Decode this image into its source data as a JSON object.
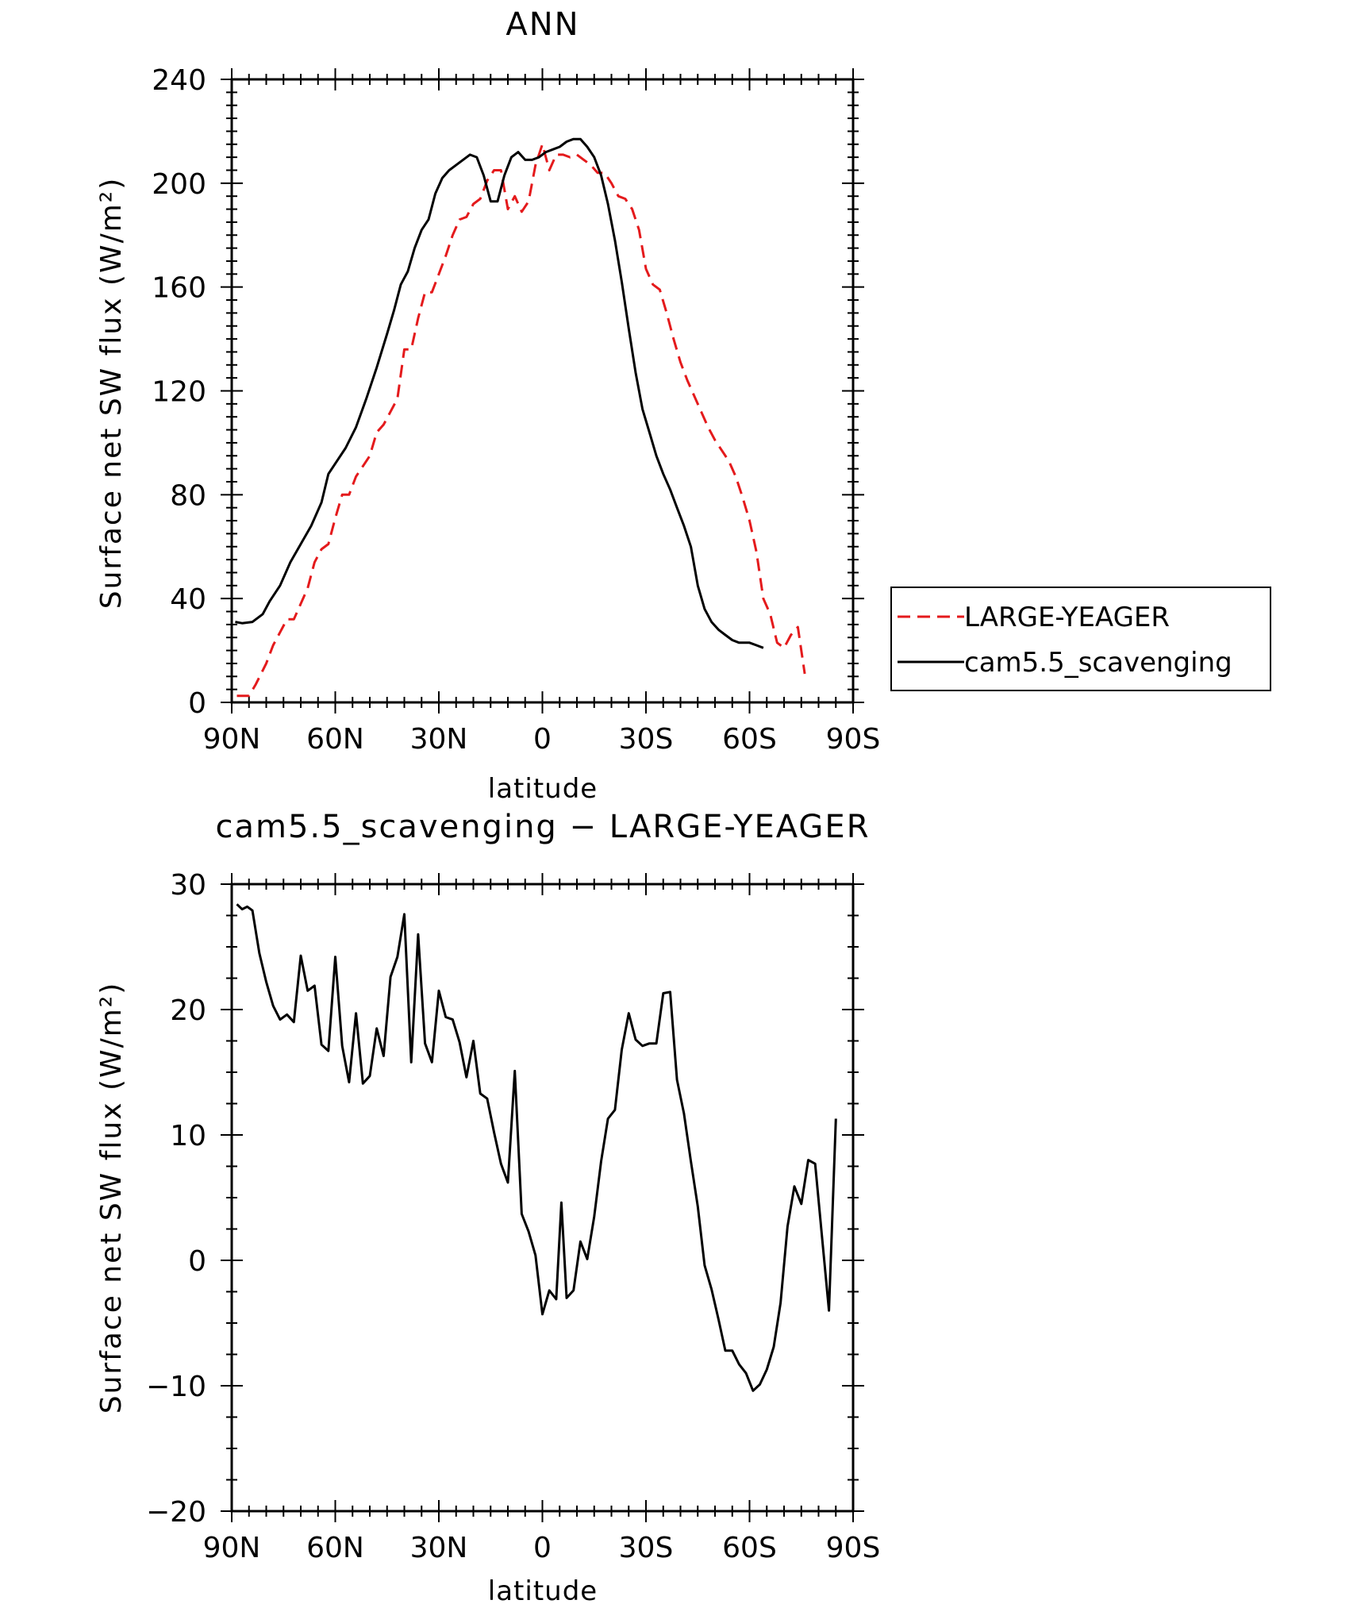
{
  "chart_data": [
    {
      "type": "line",
      "title": "ANN",
      "xlabel": "latitude",
      "ylabel": "Surface net SW flux (W/m²)",
      "xlim": [
        -90,
        90
      ],
      "ylim": [
        0,
        240
      ],
      "x_ticks": [
        "90N",
        "60N",
        "30N",
        "0",
        "30S",
        "60S",
        "90S"
      ],
      "y_ticks": [
        "0",
        "40",
        "80",
        "120",
        "160",
        "200",
        "240"
      ],
      "legend_position": "right",
      "series": [
        {
          "name": "LARGE-YEAGER",
          "color": "#e41a1c",
          "style": "dashed",
          "points": [
            [
              -88.5,
              2.5
            ],
            [
              -85,
              2.5
            ],
            [
              -83,
              7
            ],
            [
              -80,
              15
            ],
            [
              -78,
              22
            ],
            [
              -76,
              27
            ],
            [
              -74,
              32
            ],
            [
              -72,
              32
            ],
            [
              -70,
              38
            ],
            [
              -68,
              44
            ],
            [
              -66,
              54
            ],
            [
              -64,
              59
            ],
            [
              -62,
              61
            ],
            [
              -60,
              71
            ],
            [
              -58,
              80
            ],
            [
              -56,
              80
            ],
            [
              -54,
              87
            ],
            [
              -52,
              91
            ],
            [
              -50,
              95
            ],
            [
              -48,
              104
            ],
            [
              -46,
              107
            ],
            [
              -44,
              112
            ],
            [
              -42,
              117
            ],
            [
              -40,
              136
            ],
            [
              -38,
              136
            ],
            [
              -36,
              148
            ],
            [
              -34,
              158
            ],
            [
              -32,
              158
            ],
            [
              -30,
              165
            ],
            [
              -28,
              172
            ],
            [
              -26,
              180
            ],
            [
              -24,
              186
            ],
            [
              -22,
              187
            ],
            [
              -20,
              192
            ],
            [
              -18,
              194
            ],
            [
              -16,
              201
            ],
            [
              -14,
              205
            ],
            [
              -12,
              205
            ],
            [
              -10,
              190
            ],
            [
              -8,
              195
            ],
            [
              -6,
              189
            ],
            [
              -4,
              193
            ],
            [
              -2,
              207
            ],
            [
              0,
              215
            ],
            [
              2,
              205
            ],
            [
              4,
              211
            ],
            [
              6,
              211
            ],
            [
              8,
              210
            ],
            [
              10,
              211
            ],
            [
              12,
              209
            ],
            [
              14,
              207
            ],
            [
              16,
              204
            ],
            [
              18,
              204
            ],
            [
              20,
              200
            ],
            [
              22,
              195
            ],
            [
              24,
              194
            ],
            [
              26,
              190
            ],
            [
              28,
              182
            ],
            [
              30,
              167
            ],
            [
              32,
              161
            ],
            [
              34,
              159
            ],
            [
              36,
              150
            ],
            [
              38,
              140
            ],
            [
              40,
              131
            ],
            [
              42,
              124
            ],
            [
              44,
              118
            ],
            [
              46,
              112
            ],
            [
              48,
              106
            ],
            [
              50,
              101
            ],
            [
              52,
              97
            ],
            [
              54,
              93
            ],
            [
              56,
              87
            ],
            [
              58,
              79
            ],
            [
              60,
              70
            ],
            [
              62,
              58
            ],
            [
              64,
              40
            ],
            [
              66,
              34
            ],
            [
              68,
              23
            ],
            [
              70,
              21
            ],
            [
              72,
              26
            ],
            [
              74,
              29
            ],
            [
              76,
              11
            ]
          ]
        },
        {
          "name": "cam5.5_scavenging",
          "color": "#000000",
          "style": "solid",
          "points": [
            [
              -89,
              31
            ],
            [
              -87,
              30.5
            ],
            [
              -84,
              31
            ],
            [
              -81,
              34
            ],
            [
              -79,
              39
            ],
            [
              -76,
              45
            ],
            [
              -73,
              54
            ],
            [
              -70,
              61
            ],
            [
              -67,
              68
            ],
            [
              -64,
              77
            ],
            [
              -62,
              88
            ],
            [
              -60,
              92
            ],
            [
              -57,
              98
            ],
            [
              -54,
              106
            ],
            [
              -51,
              117
            ],
            [
              -48,
              129
            ],
            [
              -45,
              142
            ],
            [
              -43,
              151
            ],
            [
              -41,
              161
            ],
            [
              -39,
              166
            ],
            [
              -37,
              175
            ],
            [
              -35,
              182
            ],
            [
              -33,
              186
            ],
            [
              -31,
              196
            ],
            [
              -29,
              202
            ],
            [
              -27,
              205
            ],
            [
              -25,
              207
            ],
            [
              -23,
              209
            ],
            [
              -21,
              211
            ],
            [
              -19,
              210
            ],
            [
              -17,
              203
            ],
            [
              -15,
              193
            ],
            [
              -13,
              193
            ],
            [
              -11,
              203
            ],
            [
              -9,
              210
            ],
            [
              -7,
              212
            ],
            [
              -5,
              209
            ],
            [
              -3,
              209
            ],
            [
              -1,
              210
            ],
            [
              1,
              212
            ],
            [
              3,
              213
            ],
            [
              5,
              214
            ],
            [
              7,
              216
            ],
            [
              9,
              217
            ],
            [
              11,
              217
            ],
            [
              13,
              214
            ],
            [
              15,
              210
            ],
            [
              17,
              203
            ],
            [
              19,
              192
            ],
            [
              21,
              178
            ],
            [
              23,
              162
            ],
            [
              25,
              144
            ],
            [
              27,
              127
            ],
            [
              29,
              113
            ],
            [
              31,
              104
            ],
            [
              33,
              95
            ],
            [
              35,
              88
            ],
            [
              37,
              82
            ],
            [
              39,
              75
            ],
            [
              41,
              68
            ],
            [
              43,
              60
            ],
            [
              45,
              45
            ],
            [
              47,
              36
            ],
            [
              49,
              31
            ],
            [
              51,
              28
            ],
            [
              53,
              26
            ],
            [
              55,
              24
            ],
            [
              57,
              23
            ],
            [
              60,
              23
            ],
            [
              62,
              22
            ],
            [
              64,
              21
            ]
          ]
        }
      ]
    },
    {
      "type": "line",
      "title": "cam5.5_scavenging − LARGE-YEAGER",
      "xlabel": "latitude",
      "ylabel": "Surface net SW flux (W/m²)",
      "xlim": [
        -90,
        90
      ],
      "ylim": [
        -20,
        30
      ],
      "x_ticks": [
        "90N",
        "60N",
        "30N",
        "0",
        "30S",
        "60S",
        "90S"
      ],
      "y_ticks": [
        "−20",
        "−10",
        "0",
        "10",
        "20",
        "30"
      ],
      "series": [
        {
          "color": "#000000",
          "style": "solid",
          "points": [
            [
              -88.5,
              28.4
            ],
            [
              -87,
              28
            ],
            [
              -85.5,
              28.2
            ],
            [
              -84,
              27.9
            ],
            [
              -82,
              24.5
            ],
            [
              -80,
              22.2
            ],
            [
              -78,
              20.3
            ],
            [
              -76,
              19.2
            ],
            [
              -74,
              19.6
            ],
            [
              -72,
              19
            ],
            [
              -70,
              24.3
            ],
            [
              -68,
              21.5
            ],
            [
              -66,
              21.9
            ],
            [
              -64,
              17.2
            ],
            [
              -62,
              16.7
            ],
            [
              -60,
              24.2
            ],
            [
              -58,
              17.1
            ],
            [
              -56,
              14.2
            ],
            [
              -54,
              19.7
            ],
            [
              -52,
              14.1
            ],
            [
              -50,
              14.7
            ],
            [
              -48,
              18.5
            ],
            [
              -46,
              16.3
            ],
            [
              -44,
              22.6
            ],
            [
              -42,
              24.2
            ],
            [
              -40,
              27.6
            ],
            [
              -38,
              15.8
            ],
            [
              -36,
              26
            ],
            [
              -34,
              17.3
            ],
            [
              -32,
              15.8
            ],
            [
              -30,
              21.5
            ],
            [
              -28,
              19.4
            ],
            [
              -26,
              19.2
            ],
            [
              -24,
              17.4
            ],
            [
              -22,
              14.6
            ],
            [
              -20,
              17.5
            ],
            [
              -18,
              13.3
            ],
            [
              -16,
              12.9
            ],
            [
              -14,
              10.2
            ],
            [
              -12,
              7.7
            ],
            [
              -10,
              6.2
            ],
            [
              -8,
              15.1
            ],
            [
              -6,
              3.7
            ],
            [
              -4,
              2.3
            ],
            [
              -2,
              0.4
            ],
            [
              0,
              -4.3
            ],
            [
              2,
              -2.4
            ],
            [
              4,
              -3.1
            ],
            [
              5.5,
              4.6
            ],
            [
              7,
              -3
            ],
            [
              9,
              -2.4
            ],
            [
              11,
              1.5
            ],
            [
              13,
              0.1
            ],
            [
              15,
              3.5
            ],
            [
              17,
              7.9
            ],
            [
              19,
              11.3
            ],
            [
              21,
              12
            ],
            [
              23,
              16.8
            ],
            [
              25,
              19.7
            ],
            [
              27,
              17.6
            ],
            [
              29,
              17.1
            ],
            [
              31,
              17.3
            ],
            [
              33,
              17.3
            ],
            [
              35,
              21.3
            ],
            [
              37,
              21.4
            ],
            [
              39,
              14.4
            ],
            [
              41,
              11.7
            ],
            [
              43,
              7.9
            ],
            [
              45,
              4.3
            ],
            [
              47,
              -0.4
            ],
            [
              49,
              -2.3
            ],
            [
              51,
              -4.7
            ],
            [
              53,
              -7.2
            ],
            [
              55,
              -7.2
            ],
            [
              57,
              -8.3
            ],
            [
              59,
              -9
            ],
            [
              61,
              -10.4
            ],
            [
              63,
              -9.9
            ],
            [
              65,
              -8.7
            ],
            [
              67,
              -6.9
            ],
            [
              69,
              -3.4
            ],
            [
              71,
              2.7
            ],
            [
              73,
              5.9
            ],
            [
              75,
              4.5
            ],
            [
              77,
              8
            ],
            [
              79,
              7.7
            ],
            [
              81,
              1.9
            ],
            [
              83,
              -4
            ],
            [
              85,
              11.3
            ]
          ]
        }
      ]
    }
  ]
}
